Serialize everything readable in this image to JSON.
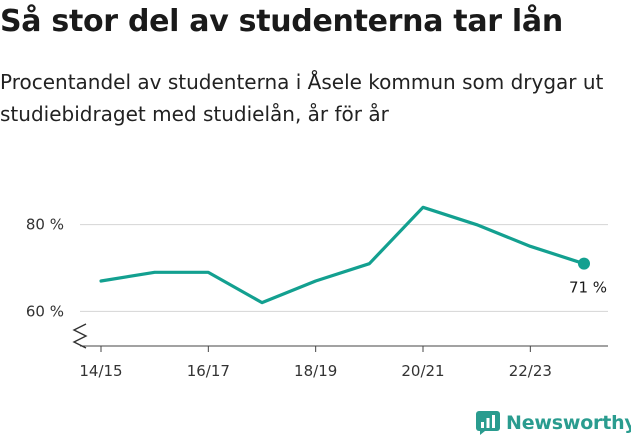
{
  "title": "Så stor del av studenterna tar lån",
  "subtitle": "Procentandel av studenterna i Åsele kommun som drygar ut studiebidraget med studielån, år för år",
  "brand": {
    "name": "Newsworthy",
    "icon": "newsworthy-logo-icon",
    "color": "#2a9c8f"
  },
  "chart_data": {
    "type": "line",
    "x": [
      "14/15",
      "15/16",
      "16/17",
      "17/18",
      "18/19",
      "19/20",
      "20/21",
      "21/22",
      "22/23",
      "23/24"
    ],
    "x_tick_labels": [
      "14/15",
      "16/17",
      "18/19",
      "20/21",
      "22/23"
    ],
    "series": [
      {
        "values": [
          67,
          69,
          69,
          62,
          67,
          71,
          84,
          80,
          75,
          71
        ],
        "color": "#13a090"
      }
    ],
    "y_ticks": [
      60,
      80
    ],
    "y_tick_labels": [
      "60 %",
      "80 %"
    ],
    "ylim": [
      52,
      88
    ],
    "y_axis_broken": true,
    "last_point_label": "71 %",
    "grid": true
  }
}
